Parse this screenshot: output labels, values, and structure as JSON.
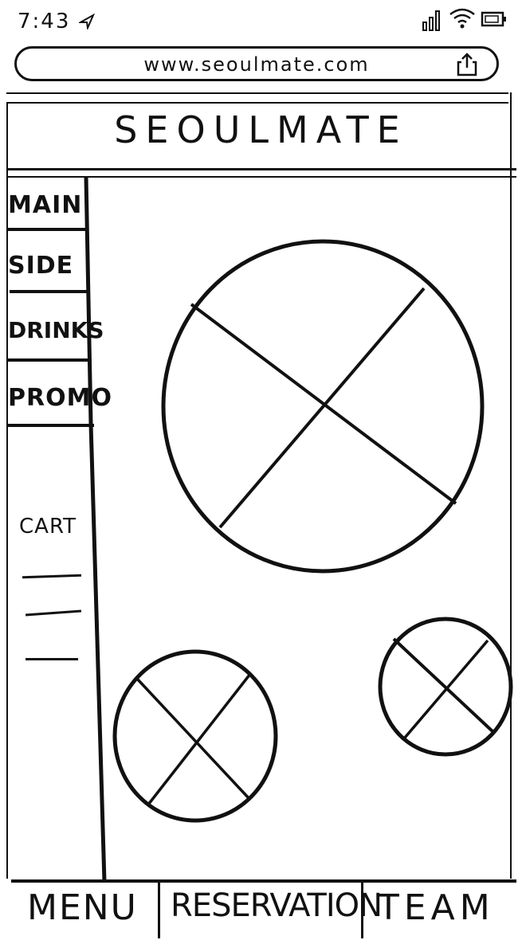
{
  "status_bar": {
    "time": "7:43",
    "icons": [
      "location-arrow-icon",
      "signal-icon",
      "wifi-icon",
      "battery-icon"
    ]
  },
  "browser": {
    "url": "www.seoulmate.com",
    "share_icon": "share-icon"
  },
  "header": {
    "title": "SEOULMATE"
  },
  "sidebar": {
    "items": [
      {
        "label": "MAIN"
      },
      {
        "label": "SIDE"
      },
      {
        "label": "DRINKS"
      },
      {
        "label": "PROMO"
      }
    ],
    "cart": {
      "label": "CART",
      "line_count": 3
    }
  },
  "main": {
    "image_placeholders": [
      "large-image-placeholder",
      "small-image-placeholder-left",
      "small-image-placeholder-right"
    ]
  },
  "bottom_nav": {
    "items": [
      {
        "label": "MENU"
      },
      {
        "label": "RESERVATION"
      },
      {
        "label": "TEAM"
      }
    ]
  }
}
